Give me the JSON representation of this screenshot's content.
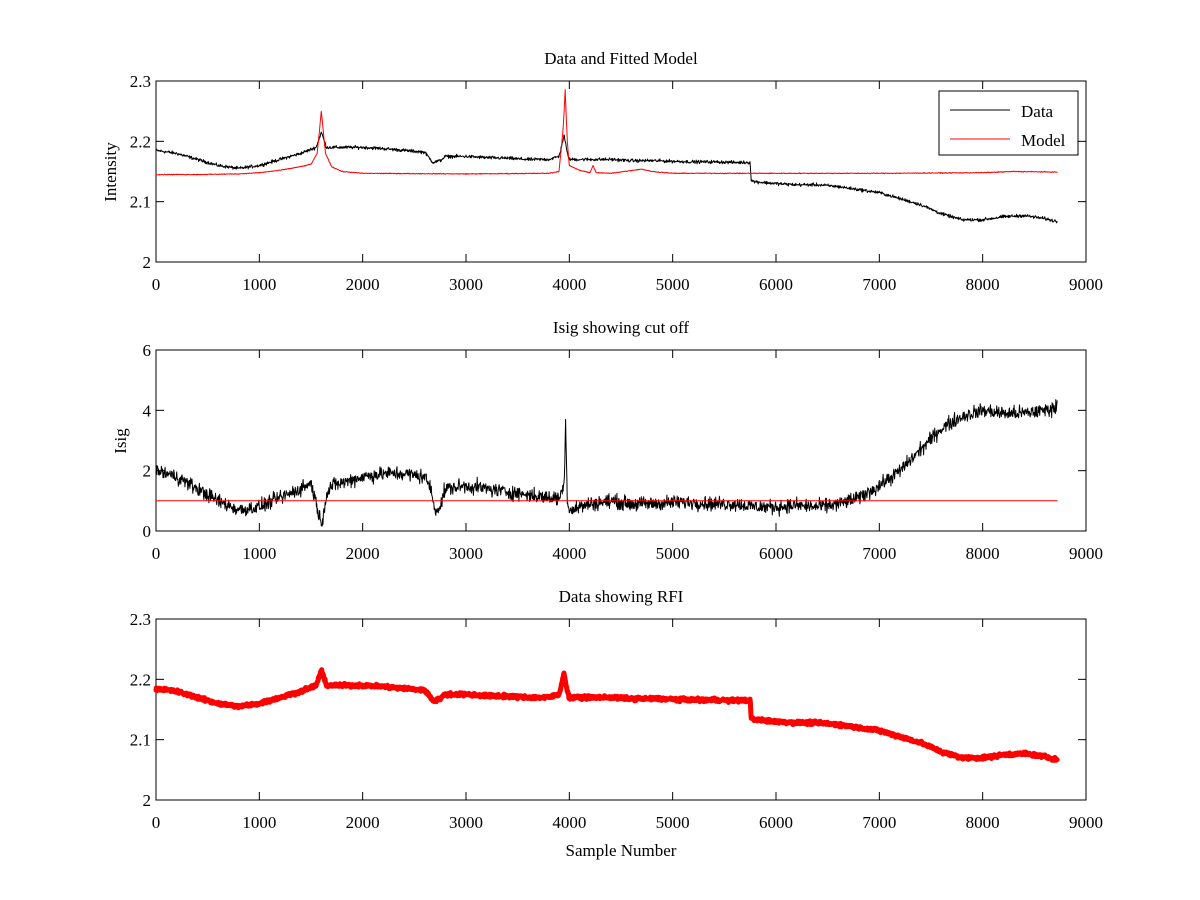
{
  "colors": {
    "data": "#000000",
    "model": "#ff0000",
    "rfi": "#ff0000",
    "background": "#ffffff"
  },
  "chart_data": [
    {
      "type": "line",
      "title": "Data and Fitted Model",
      "xlabel": "",
      "ylabel": "Intensity",
      "xlim": [
        0,
        9000
      ],
      "ylim": [
        2,
        2.3
      ],
      "xticks": [
        0,
        1000,
        2000,
        3000,
        4000,
        5000,
        6000,
        7000,
        8000,
        9000
      ],
      "yticks": [
        2,
        2.1,
        2.2,
        2.3
      ],
      "xtick_labels": [
        "0",
        "1000",
        "2000",
        "3000",
        "4000",
        "5000",
        "6000",
        "7000",
        "8000",
        "9000"
      ],
      "ytick_labels": [
        "2",
        "2.1",
        "2.2",
        "2.3"
      ],
      "legend": {
        "position": "top-right",
        "entries": [
          "Data",
          "Model"
        ]
      },
      "grid": false,
      "series": [
        {
          "name": "Data",
          "color": "#000000",
          "x": [
            0,
            200,
            400,
            600,
            800,
            1000,
            1200,
            1400,
            1550,
            1600,
            1650,
            1800,
            2000,
            2200,
            2400,
            2600,
            2680,
            2750,
            2800,
            3000,
            3200,
            3400,
            3600,
            3800,
            3900,
            3950,
            3980,
            4000,
            4200,
            4400,
            4600,
            4800,
            5000,
            5200,
            5400,
            5600,
            5750,
            5760,
            5800,
            6000,
            6200,
            6400,
            6600,
            6800,
            7000,
            7200,
            7400,
            7600,
            7800,
            8000,
            8200,
            8400,
            8600,
            8720
          ],
          "y": [
            2.185,
            2.18,
            2.17,
            2.16,
            2.155,
            2.16,
            2.17,
            2.18,
            2.19,
            2.215,
            2.19,
            2.19,
            2.19,
            2.188,
            2.185,
            2.182,
            2.165,
            2.168,
            2.175,
            2.175,
            2.173,
            2.172,
            2.17,
            2.17,
            2.175,
            2.21,
            2.18,
            2.17,
            2.17,
            2.17,
            2.168,
            2.168,
            2.167,
            2.166,
            2.166,
            2.165,
            2.165,
            2.135,
            2.133,
            2.13,
            2.128,
            2.128,
            2.125,
            2.12,
            2.115,
            2.105,
            2.095,
            2.08,
            2.07,
            2.07,
            2.075,
            2.077,
            2.072,
            2.067
          ],
          "noise": 0.004
        },
        {
          "name": "Model",
          "color": "#ff0000",
          "x": [
            0,
            400,
            800,
            1000,
            1200,
            1400,
            1500,
            1560,
            1600,
            1640,
            1700,
            1800,
            2000,
            3000,
            3800,
            3900,
            3940,
            3960,
            3980,
            4000,
            4100,
            4200,
            4230,
            4260,
            4400,
            4700,
            4800,
            5000,
            6000,
            7000,
            8000,
            8300,
            8720
          ],
          "y": [
            2.145,
            2.145,
            2.146,
            2.148,
            2.152,
            2.158,
            2.162,
            2.18,
            2.25,
            2.18,
            2.158,
            2.15,
            2.147,
            2.146,
            2.147,
            2.15,
            2.22,
            2.285,
            2.2,
            2.16,
            2.152,
            2.148,
            2.16,
            2.148,
            2.147,
            2.154,
            2.15,
            2.147,
            2.147,
            2.147,
            2.148,
            2.15,
            2.149
          ],
          "noise": 0.001
        }
      ]
    },
    {
      "type": "line",
      "title": "Isig showing cut off",
      "xlabel": "",
      "ylabel": "Isig",
      "xlim": [
        0,
        9000
      ],
      "ylim": [
        0,
        6
      ],
      "xticks": [
        0,
        1000,
        2000,
        3000,
        4000,
        5000,
        6000,
        7000,
        8000,
        9000
      ],
      "yticks": [
        0,
        2,
        4,
        6
      ],
      "xtick_labels": [
        "0",
        "1000",
        "2000",
        "3000",
        "4000",
        "5000",
        "6000",
        "7000",
        "8000",
        "9000"
      ],
      "ytick_labels": [
        "0",
        "2",
        "4",
        "6"
      ],
      "grid": false,
      "series": [
        {
          "color": "#000000",
          "x": [
            0,
            200,
            400,
            600,
            800,
            1000,
            1200,
            1400,
            1500,
            1560,
            1600,
            1650,
            1700,
            1800,
            2000,
            2200,
            2400,
            2600,
            2650,
            2700,
            2750,
            2800,
            3000,
            3200,
            3400,
            3600,
            3800,
            3900,
            3950,
            3965,
            3980,
            4000,
            4200,
            4400,
            4600,
            4800,
            5000,
            5200,
            5400,
            5600,
            5800,
            6000,
            6200,
            6400,
            6600,
            6800,
            7000,
            7200,
            7400,
            7600,
            7800,
            8000,
            8200,
            8400,
            8600,
            8720
          ],
          "y": [
            2.0,
            1.8,
            1.4,
            1.0,
            0.7,
            0.8,
            1.1,
            1.4,
            1.6,
            0.8,
            0.2,
            1.2,
            1.5,
            1.6,
            1.8,
            1.9,
            1.9,
            1.8,
            1.5,
            0.7,
            0.8,
            1.4,
            1.5,
            1.4,
            1.3,
            1.2,
            1.1,
            1.1,
            1.5,
            3.8,
            1.0,
            0.7,
            0.9,
            1.0,
            0.9,
            0.9,
            0.95,
            0.95,
            0.9,
            0.9,
            0.8,
            0.8,
            0.85,
            0.8,
            0.9,
            1.1,
            1.5,
            2.0,
            2.7,
            3.4,
            3.8,
            4.0,
            3.9,
            3.9,
            4.0,
            4.1
          ],
          "noise": 0.35
        },
        {
          "color": "#ff0000",
          "x": [
            0,
            8720
          ],
          "y": [
            1.0,
            1.0
          ],
          "noise": 0
        }
      ]
    },
    {
      "type": "scatter",
      "title": "Data showing RFI",
      "xlabel": "Sample Number",
      "ylabel": "",
      "xlim": [
        0,
        9000
      ],
      "ylim": [
        2,
        2.3
      ],
      "xticks": [
        0,
        1000,
        2000,
        3000,
        4000,
        5000,
        6000,
        7000,
        8000,
        9000
      ],
      "yticks": [
        2,
        2.1,
        2.2,
        2.3
      ],
      "xtick_labels": [
        "0",
        "1000",
        "2000",
        "3000",
        "4000",
        "5000",
        "6000",
        "7000",
        "8000",
        "9000"
      ],
      "ytick_labels": [
        "2",
        "2.1",
        "2.2",
        "2.3"
      ],
      "grid": false,
      "series": [
        {
          "color": "#ff0000",
          "x": [
            0,
            200,
            400,
            600,
            800,
            1000,
            1200,
            1400,
            1550,
            1600,
            1650,
            1800,
            2000,
            2200,
            2400,
            2600,
            2680,
            2750,
            2800,
            3000,
            3200,
            3400,
            3600,
            3800,
            3900,
            3950,
            3980,
            4000,
            4200,
            4400,
            4600,
            4800,
            5000,
            5200,
            5400,
            5600,
            5750,
            5760,
            5800,
            6000,
            6200,
            6400,
            6600,
            6800,
            7000,
            7200,
            7400,
            7600,
            7800,
            8000,
            8200,
            8400,
            8600,
            8720
          ],
          "y": [
            2.185,
            2.18,
            2.17,
            2.16,
            2.155,
            2.16,
            2.17,
            2.18,
            2.19,
            2.215,
            2.19,
            2.19,
            2.19,
            2.188,
            2.185,
            2.182,
            2.165,
            2.168,
            2.175,
            2.175,
            2.173,
            2.172,
            2.17,
            2.17,
            2.175,
            2.21,
            2.18,
            2.17,
            2.17,
            2.17,
            2.168,
            2.168,
            2.167,
            2.166,
            2.166,
            2.165,
            2.165,
            2.135,
            2.133,
            2.13,
            2.128,
            2.128,
            2.125,
            2.12,
            2.115,
            2.105,
            2.095,
            2.08,
            2.07,
            2.07,
            2.075,
            2.077,
            2.072,
            2.067
          ],
          "noise": 0.004
        }
      ]
    }
  ]
}
